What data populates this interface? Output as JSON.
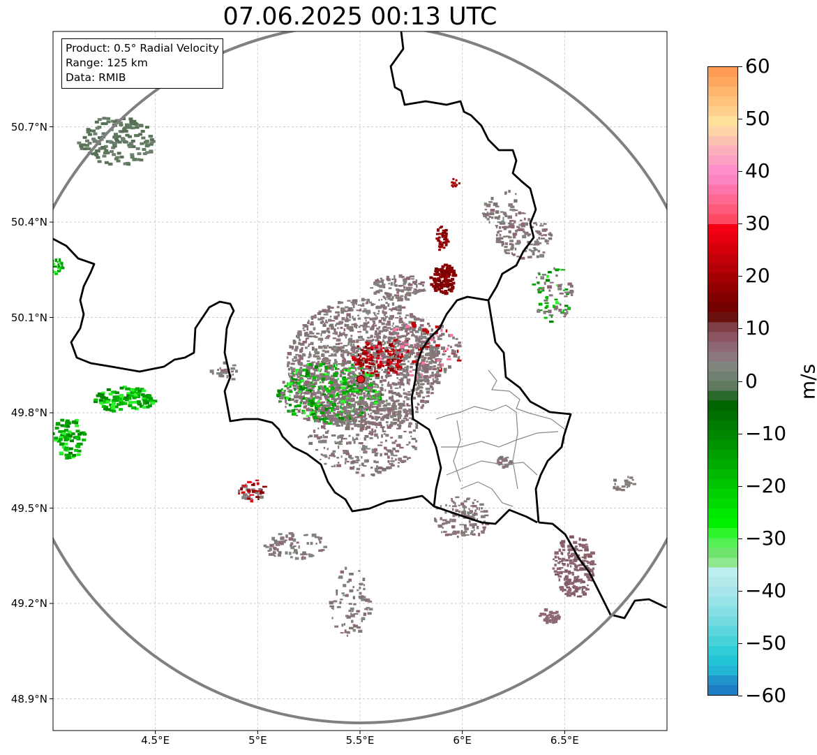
{
  "title": "07.06.2025 00:13 UTC",
  "info_box": {
    "product": "Product: 0.5° Radial Velocity",
    "range": "Range: 125 km",
    "data": "Data: RMIB"
  },
  "map": {
    "lon_range": [
      4.0,
      7.0
    ],
    "lat_range": [
      48.8,
      51.0
    ],
    "lat_ticks": [
      {
        "value": 50.7,
        "label": "50.7°N"
      },
      {
        "value": 50.4,
        "label": "50.4°N"
      },
      {
        "value": 50.1,
        "label": "50.1°N"
      },
      {
        "value": 49.8,
        "label": "49.8°N"
      },
      {
        "value": 49.5,
        "label": "49.5°N"
      },
      {
        "value": 49.2,
        "label": "49.2°N"
      },
      {
        "value": 48.9,
        "label": "48.9°N"
      }
    ],
    "lon_ticks": [
      {
        "value": 4.5,
        "label": "4.5°E"
      },
      {
        "value": 5.0,
        "label": "5°E"
      },
      {
        "value": 5.5,
        "label": "5.5°E"
      },
      {
        "value": 6.0,
        "label": "6°E"
      },
      {
        "value": 6.5,
        "label": "6.5°E"
      }
    ],
    "radar_site": {
      "lon": 5.51,
      "lat": 49.91
    },
    "range_ring_km": 125
  },
  "colorbar": {
    "unit": "m/s",
    "min": -60,
    "max": 60,
    "ticks": [
      {
        "value": 60,
        "label": "60"
      },
      {
        "value": 50,
        "label": "50"
      },
      {
        "value": 40,
        "label": "40"
      },
      {
        "value": 30,
        "label": "30"
      },
      {
        "value": 20,
        "label": "20"
      },
      {
        "value": 10,
        "label": "10"
      },
      {
        "value": 0,
        "label": "0"
      },
      {
        "value": -10,
        "label": "−10"
      },
      {
        "value": -20,
        "label": "−20"
      },
      {
        "value": -30,
        "label": "−30"
      },
      {
        "value": -40,
        "label": "−40"
      },
      {
        "value": -50,
        "label": "−50"
      },
      {
        "value": -60,
        "label": "−60"
      }
    ],
    "colors_top_to_bottom": [
      "#ff9a55",
      "#ffa860",
      "#ffb56c",
      "#ffc27a",
      "#ffd08c",
      "#ffe09a",
      "#fdd5a6",
      "#fcc2b0",
      "#fdb0bb",
      "#fda1c4",
      "#fe8fcb",
      "#fd84c3",
      "#fe74a8",
      "#fd6890",
      "#fd5a7a",
      "#fe4a63",
      "#f50013",
      "#e6000d",
      "#d5000a",
      "#c40008",
      "#b40006",
      "#a30004",
      "#930002",
      "#830000",
      "#740000",
      "#6d1010",
      "#7f3f46",
      "#8b5561",
      "#8e6776",
      "#8c777e",
      "#80857e",
      "#6f8070",
      "#5f7a5f",
      "#2a6a2a",
      "#006400",
      "#007000",
      "#007c00",
      "#008700",
      "#009300",
      "#009f00",
      "#00ab00",
      "#00b800",
      "#00c400",
      "#00d000",
      "#00dc00",
      "#00e800",
      "#00f000",
      "#2cf52c",
      "#55f055",
      "#6ee46e",
      "#8ee88e",
      "#bdeef0",
      "#b5eaed",
      "#a6e6ea",
      "#96e3e8",
      "#86dfe4",
      "#72dae0",
      "#5cd6dd",
      "#46d2d8",
      "#30cdd6",
      "#22c4d5",
      "#23b5d4",
      "#2092cc",
      "#1e7ec4"
    ]
  }
}
